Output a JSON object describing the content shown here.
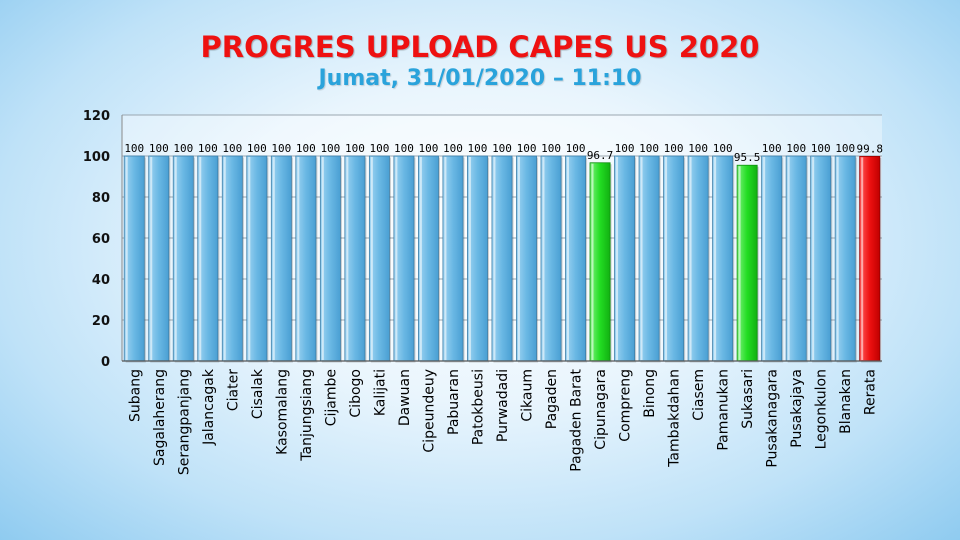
{
  "slide": {
    "title": "PROGRES UPLOAD CAPES US 2020",
    "subtitle": "Jumat, 31/01/2020 – 11:10"
  },
  "chart_data": {
    "type": "bar",
    "categories": [
      "Subang",
      "Sagalaherang",
      "Serangpanjang",
      "Jalancagak",
      "Ciater",
      "Cisalak",
      "Kasomalang",
      "Tanjungsiang",
      "Cijambe",
      "Cibogo",
      "Kalijati",
      "Dawuan",
      "Cipeundeuy",
      "Pabuaran",
      "Patokbeusi",
      "Purwadadi",
      "Cikaum",
      "Pagaden",
      "Pagaden Barat",
      "Cipunagara",
      "Compreng",
      "Binong",
      "Tambakdahan",
      "Ciasem",
      "Pamanukan",
      "Sukasari",
      "Pusakanagara",
      "Pusakajaya",
      "Legonkulon",
      "Blanakan",
      "Rerata"
    ],
    "values": [
      100,
      100,
      100,
      100,
      100,
      100,
      100,
      100,
      100,
      100,
      100,
      100,
      100,
      100,
      100,
      100,
      100,
      100,
      100,
      96.7,
      100,
      100,
      100,
      100,
      100,
      95.5,
      100,
      100,
      100,
      100,
      99.8
    ],
    "data_labels": [
      "100",
      "100",
      "100",
      "100",
      "100",
      "100",
      "100",
      "100",
      "100",
      "100",
      "100",
      "100",
      "100",
      "100",
      "100",
      "100",
      "100",
      "100",
      "100",
      "96.7",
      "100",
      "100",
      "100",
      "100",
      "100",
      "95.5",
      "100",
      "100",
      "100",
      "100",
      "99.8"
    ],
    "bar_colors": [
      "#6ab8e4",
      "#6ab8e4",
      "#6ab8e4",
      "#6ab8e4",
      "#6ab8e4",
      "#6ab8e4",
      "#6ab8e4",
      "#6ab8e4",
      "#6ab8e4",
      "#6ab8e4",
      "#6ab8e4",
      "#6ab8e4",
      "#6ab8e4",
      "#6ab8e4",
      "#6ab8e4",
      "#6ab8e4",
      "#6ab8e4",
      "#6ab8e4",
      "#6ab8e4",
      "#22dd22",
      "#6ab8e4",
      "#6ab8e4",
      "#6ab8e4",
      "#6ab8e4",
      "#6ab8e4",
      "#22dd22",
      "#6ab8e4",
      "#6ab8e4",
      "#6ab8e4",
      "#6ab8e4",
      "#ee1111"
    ],
    "yticks": [
      "0",
      "20",
      "40",
      "60",
      "80",
      "100",
      "120"
    ],
    "ylim": [
      0,
      120
    ],
    "grid": true,
    "xlabel": "",
    "ylabel": ""
  }
}
